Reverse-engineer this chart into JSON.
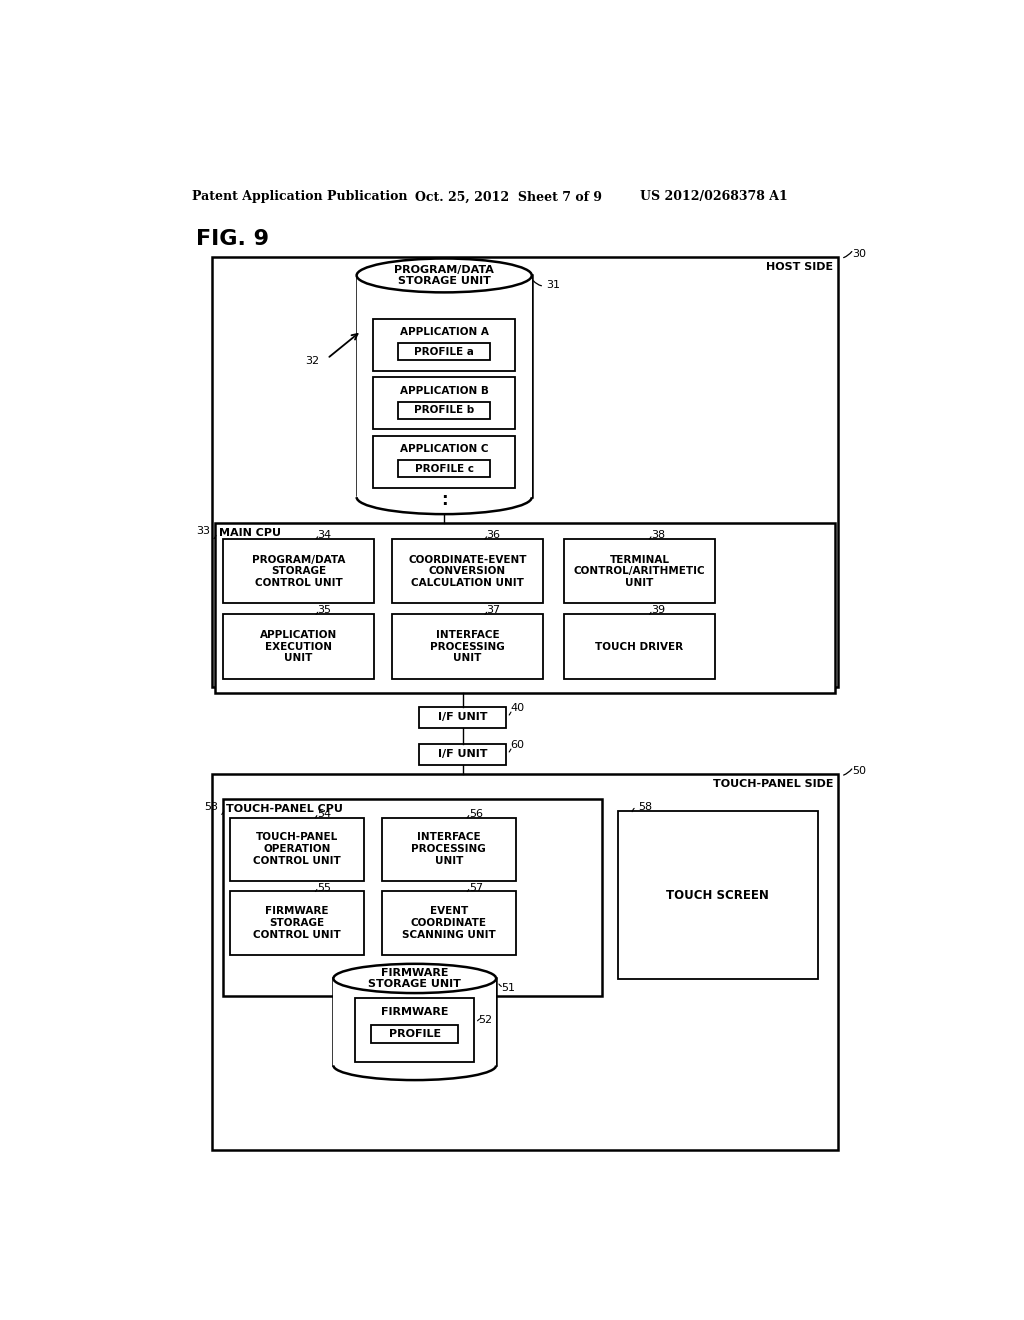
{
  "bg_color": "#ffffff",
  "text_color": "#000000",
  "header_left": "Patent Application Publication",
  "header_mid": "Oct. 25, 2012  Sheet 7 of 9",
  "header_right": "US 2012/0268378 A1",
  "fig_label": "FIG. 9"
}
